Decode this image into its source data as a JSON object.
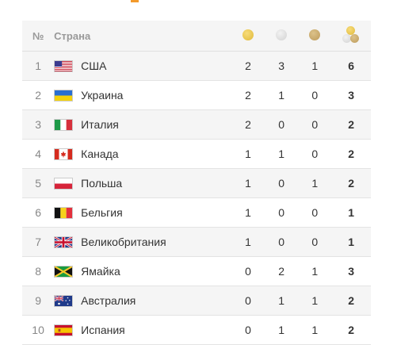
{
  "header": {
    "num": "№",
    "country": "Страна",
    "gold_icon": "gold-medal-icon",
    "silver_icon": "silver-medal-icon",
    "bronze_icon": "bronze-medal-icon",
    "total_icon": "total-medals-icon"
  },
  "colors": {
    "gold": "#e8c24a",
    "silver": "#dcdcdc",
    "bronze": "#c9a96a",
    "accent": "#f39a2b"
  },
  "rows": [
    {
      "rank": "1",
      "country": "США",
      "flag": "usa-flag-icon",
      "gold": "2",
      "silver": "3",
      "bronze": "1",
      "total": "6"
    },
    {
      "rank": "2",
      "country": "Украина",
      "flag": "ukraine-flag-icon",
      "gold": "2",
      "silver": "1",
      "bronze": "0",
      "total": "3"
    },
    {
      "rank": "3",
      "country": "Италия",
      "flag": "italy-flag-icon",
      "gold": "2",
      "silver": "0",
      "bronze": "0",
      "total": "2"
    },
    {
      "rank": "4",
      "country": "Канада",
      "flag": "canada-flag-icon",
      "gold": "1",
      "silver": "1",
      "bronze": "0",
      "total": "2"
    },
    {
      "rank": "5",
      "country": "Польша",
      "flag": "poland-flag-icon",
      "gold": "1",
      "silver": "0",
      "bronze": "1",
      "total": "2"
    },
    {
      "rank": "6",
      "country": "Бельгия",
      "flag": "belgium-flag-icon",
      "gold": "1",
      "silver": "0",
      "bronze": "0",
      "total": "1"
    },
    {
      "rank": "7",
      "country": "Великобритания",
      "flag": "uk-flag-icon",
      "gold": "1",
      "silver": "0",
      "bronze": "0",
      "total": "1"
    },
    {
      "rank": "8",
      "country": "Ямайка",
      "flag": "jamaica-flag-icon",
      "gold": "0",
      "silver": "2",
      "bronze": "1",
      "total": "3"
    },
    {
      "rank": "9",
      "country": "Австралия",
      "flag": "australia-flag-icon",
      "gold": "0",
      "silver": "1",
      "bronze": "1",
      "total": "2"
    },
    {
      "rank": "10",
      "country": "Испания",
      "flag": "spain-flag-icon",
      "gold": "0",
      "silver": "1",
      "bronze": "1",
      "total": "2"
    }
  ]
}
